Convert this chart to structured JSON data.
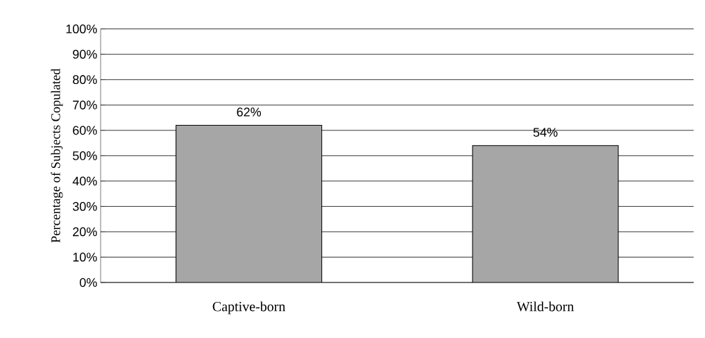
{
  "chart_data": {
    "type": "bar",
    "ylabel": "Percentage of Subjects Copulated",
    "categories": [
      "Captive-born",
      "Wild-born"
    ],
    "values": [
      62,
      54
    ],
    "value_labels": [
      "62%",
      "54%"
    ],
    "color": "#a6a6a6",
    "ylim": [
      0,
      100
    ],
    "yticks": [
      {
        "value": 0,
        "label": "0%"
      },
      {
        "value": 10,
        "label": "10%"
      },
      {
        "value": 20,
        "label": "20%"
      },
      {
        "value": 30,
        "label": "30%"
      },
      {
        "value": 40,
        "label": "40%"
      },
      {
        "value": 50,
        "label": "50%"
      },
      {
        "value": 60,
        "label": "60%"
      },
      {
        "value": 70,
        "label": "70%"
      },
      {
        "value": 80,
        "label": "80%"
      },
      {
        "value": 90,
        "label": "90%"
      },
      {
        "value": 100,
        "label": "100%"
      }
    ],
    "grid": "y"
  }
}
